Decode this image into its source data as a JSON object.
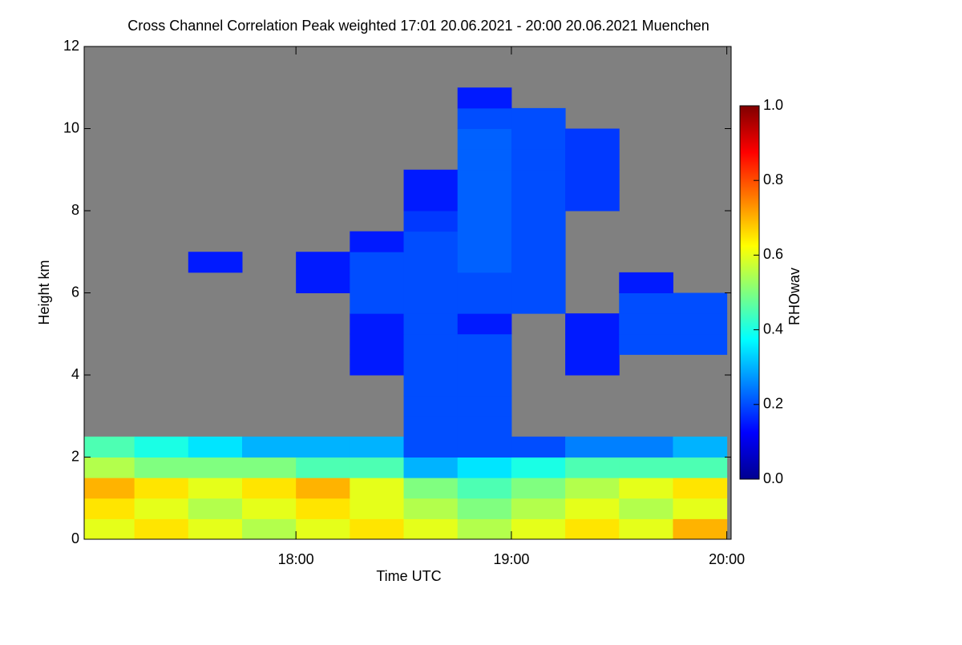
{
  "chart_data": {
    "type": "heatmap",
    "title": "Cross Channel Correlation Peak weighted   17:01 20.06.2021 - 20:00 20.06.2021 Muenchen",
    "x_label": "Time UTC",
    "y_label": "Height km",
    "colorbar_label": "RHOwav",
    "xlim": [
      17.017,
      20.02
    ],
    "xticks": [
      {
        "value": 18,
        "label": "18:00"
      },
      {
        "value": 19,
        "label": "19:00"
      },
      {
        "value": 20,
        "label": "20:00"
      }
    ],
    "ylim": [
      0,
      12
    ],
    "yticks": [
      0,
      2,
      4,
      6,
      8,
      10,
      12
    ],
    "clim": [
      0,
      1
    ],
    "cticks": [
      {
        "value": 0,
        "label": "0.0"
      },
      0.2,
      0.4,
      0.6,
      0.8,
      {
        "value": 1,
        "label": "1.0"
      }
    ],
    "colormap": "jet",
    "missing_color": "#808080",
    "x_bins": [
      17.0,
      17.25,
      17.5,
      17.75,
      18.0,
      18.25,
      18.5,
      18.75,
      19.0,
      19.25,
      19.5,
      19.75,
      20.0
    ],
    "y_bins": [
      0,
      0.5,
      1,
      1.5,
      2,
      2.5,
      3,
      3.5,
      4,
      4.5,
      5,
      5.5,
      6,
      6.5,
      7,
      7.5,
      8,
      8.5,
      9,
      9.5,
      10,
      10.5,
      11,
      11.5,
      12
    ],
    "z": [
      [
        0.6,
        0.65,
        0.6,
        0.55,
        0.6,
        0.65,
        0.6,
        0.55,
        0.6,
        0.65,
        0.6,
        0.7
      ],
      [
        0.65,
        0.6,
        0.55,
        0.6,
        0.65,
        0.6,
        0.55,
        0.5,
        0.55,
        0.6,
        0.55,
        0.6
      ],
      [
        0.7,
        0.65,
        0.6,
        0.65,
        0.7,
        0.6,
        0.5,
        0.45,
        0.5,
        0.55,
        0.6,
        0.65
      ],
      [
        0.55,
        0.5,
        0.5,
        0.5,
        0.45,
        0.45,
        0.3,
        0.35,
        0.4,
        0.45,
        0.45,
        0.45
      ],
      [
        0.45,
        0.4,
        0.35,
        0.3,
        0.3,
        0.3,
        0.2,
        0.2,
        0.2,
        0.25,
        0.25,
        0.3
      ],
      [
        null,
        null,
        null,
        null,
        null,
        null,
        0.2,
        0.2,
        null,
        null,
        null,
        null
      ],
      [
        null,
        null,
        null,
        null,
        null,
        null,
        0.2,
        0.2,
        null,
        null,
        null,
        null
      ],
      [
        null,
        null,
        null,
        null,
        null,
        null,
        0.2,
        0.2,
        null,
        null,
        null,
        null
      ],
      [
        null,
        null,
        null,
        null,
        null,
        0.15,
        0.2,
        0.2,
        null,
        0.15,
        null,
        null
      ],
      [
        null,
        null,
        null,
        null,
        null,
        0.15,
        0.2,
        0.2,
        null,
        0.15,
        0.2,
        0.2
      ],
      [
        null,
        null,
        null,
        null,
        null,
        0.15,
        0.2,
        0.15,
        null,
        0.15,
        0.2,
        0.2
      ],
      [
        null,
        null,
        null,
        null,
        null,
        0.2,
        0.2,
        0.2,
        0.2,
        null,
        0.2,
        0.2
      ],
      [
        null,
        null,
        null,
        null,
        0.15,
        0.2,
        0.2,
        0.2,
        0.2,
        null,
        0.15,
        null
      ],
      [
        null,
        null,
        0.15,
        null,
        0.15,
        0.2,
        0.2,
        0.22,
        0.2,
        null,
        null,
        null
      ],
      [
        null,
        null,
        null,
        null,
        null,
        0.15,
        0.2,
        0.22,
        0.2,
        null,
        null,
        null
      ],
      [
        null,
        null,
        null,
        null,
        null,
        null,
        0.18,
        0.22,
        0.2,
        null,
        null,
        null
      ],
      [
        null,
        null,
        null,
        null,
        null,
        null,
        0.15,
        0.22,
        0.2,
        0.18,
        null,
        null
      ],
      [
        null,
        null,
        null,
        null,
        null,
        null,
        0.15,
        0.22,
        0.2,
        0.18,
        null,
        null
      ],
      [
        null,
        null,
        null,
        null,
        null,
        null,
        null,
        0.22,
        0.2,
        0.18,
        null,
        null
      ],
      [
        null,
        null,
        null,
        null,
        null,
        null,
        null,
        0.22,
        0.2,
        0.18,
        null,
        null
      ],
      [
        null,
        null,
        null,
        null,
        null,
        null,
        null,
        0.2,
        0.2,
        null,
        null,
        null
      ],
      [
        null,
        null,
        null,
        null,
        null,
        null,
        null,
        0.15,
        null,
        null,
        null,
        null
      ],
      [
        null,
        null,
        null,
        null,
        null,
        null,
        null,
        null,
        null,
        null,
        null,
        null
      ],
      [
        null,
        null,
        null,
        null,
        null,
        null,
        null,
        null,
        null,
        null,
        null,
        null
      ]
    ]
  }
}
